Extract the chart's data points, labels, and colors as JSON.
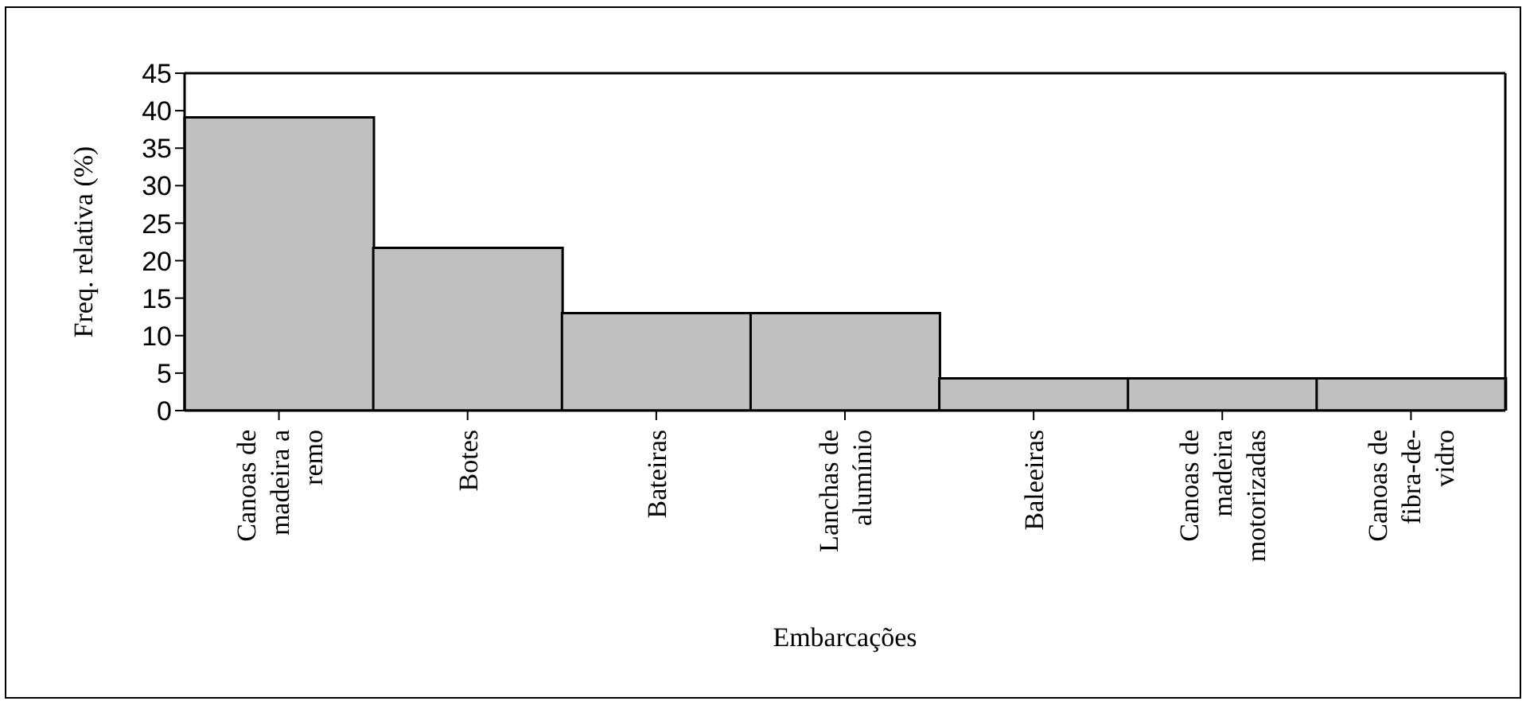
{
  "chart_data": {
    "type": "bar",
    "xlabel": "Embarcações",
    "ylabel": "Freq. relativa (%)",
    "categories": [
      "Canoas de madeira a remo",
      "Botes",
      "Bateiras",
      "Lanchas de alumínio",
      "Baleeiras",
      "Canoas de madeira motorizadas",
      "Canoas de fibra-de-vidro"
    ],
    "values": [
      39.1,
      21.7,
      13,
      13,
      4.3,
      4.3,
      4.3
    ],
    "color": "#c0c0c0",
    "ylim": [
      0,
      45
    ],
    "yticks": [
      0,
      5,
      10,
      15,
      20,
      25,
      30,
      35,
      40,
      45
    ],
    "grid": false,
    "legend": false
  }
}
